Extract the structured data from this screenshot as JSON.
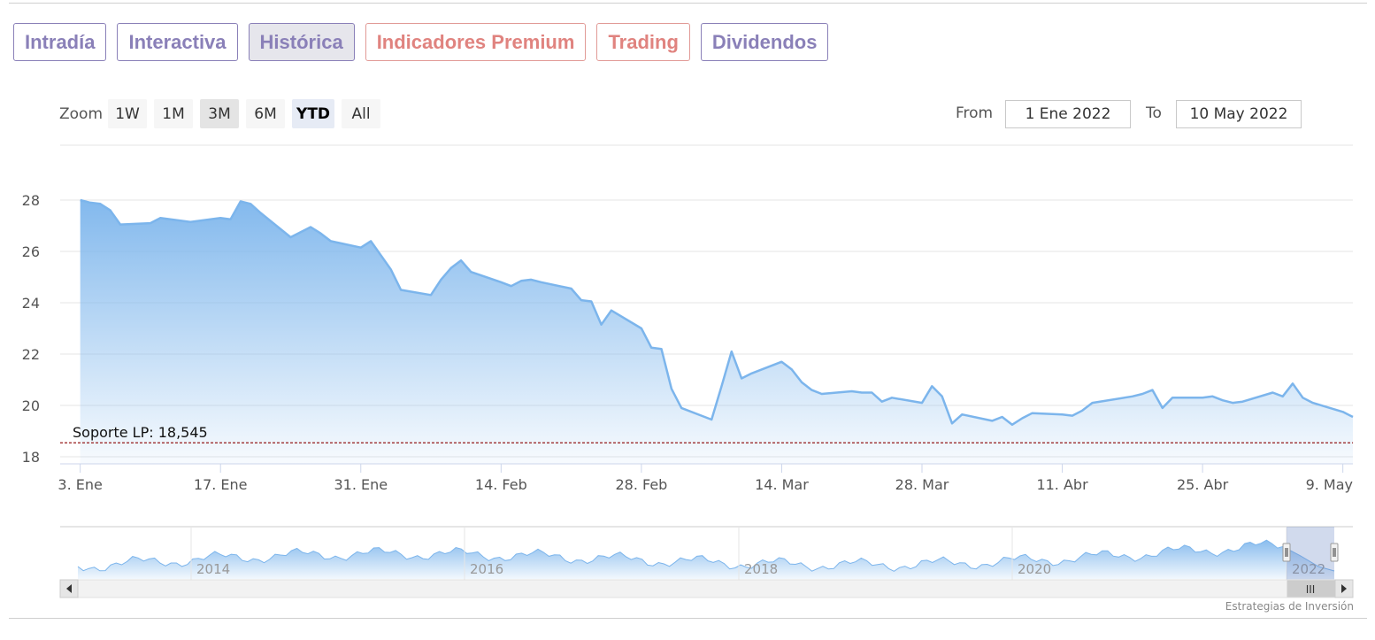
{
  "tabs": [
    {
      "label": "Intradía",
      "active": false,
      "premium": false
    },
    {
      "label": "Interactiva",
      "active": false,
      "premium": false
    },
    {
      "label": "Histórica",
      "active": true,
      "premium": false
    },
    {
      "label": "Indicadores Premium",
      "active": false,
      "premium": true
    },
    {
      "label": "Trading",
      "active": false,
      "premium": true
    },
    {
      "label": "Dividendos",
      "active": false,
      "premium": false
    }
  ],
  "zoom": {
    "label": "Zoom",
    "buttons": [
      "1W",
      "1M",
      "3M",
      "6M",
      "YTD",
      "All"
    ],
    "selected": "YTD"
  },
  "range": {
    "from_label": "From",
    "from_value": "1 Ene 2022",
    "to_label": "To",
    "to_value": "10 May 2022"
  },
  "credit": "Estrategias de Inversión",
  "colors": {
    "line": "#7cb5ec",
    "tab_text": "#8a80b8",
    "premium_text": "#e0837f",
    "support_line": "#8b0000"
  },
  "chart_data": {
    "type": "area",
    "title": "",
    "xlabel": "",
    "ylabel": "",
    "ylim": [
      18,
      28
    ],
    "yticks": [
      18,
      20,
      22,
      24,
      26,
      28
    ],
    "xticks": [
      {
        "label": "3. Ene",
        "date": "2022-01-03"
      },
      {
        "label": "17. Ene",
        "date": "2022-01-17"
      },
      {
        "label": "31. Ene",
        "date": "2022-01-31"
      },
      {
        "label": "14. Feb",
        "date": "2022-02-14"
      },
      {
        "label": "28. Feb",
        "date": "2022-02-28"
      },
      {
        "label": "14. Mar",
        "date": "2022-03-14"
      },
      {
        "label": "28. Mar",
        "date": "2022-03-28"
      },
      {
        "label": "11. Abr",
        "date": "2022-04-11"
      },
      {
        "label": "25. Abr",
        "date": "2022-04-25"
      },
      {
        "label": "9. May",
        "date": "2022-05-09"
      }
    ],
    "grid": true,
    "legend": "none",
    "plot_lines": [
      {
        "label": "Soporte LP: 18,545",
        "value": 18.545
      }
    ],
    "series": [
      {
        "x": [
          "2022-01-03",
          "2022-01-04",
          "2022-01-05",
          "2022-01-06",
          "2022-01-07",
          "2022-01-10",
          "2022-01-11",
          "2022-01-12",
          "2022-01-13",
          "2022-01-14",
          "2022-01-17",
          "2022-01-18",
          "2022-01-19",
          "2022-01-20",
          "2022-01-21",
          "2022-01-24",
          "2022-01-25",
          "2022-01-26",
          "2022-01-27",
          "2022-01-28",
          "2022-01-31",
          "2022-02-01",
          "2022-02-02",
          "2022-02-03",
          "2022-02-04",
          "2022-02-07",
          "2022-02-08",
          "2022-02-09",
          "2022-02-10",
          "2022-02-11",
          "2022-02-14",
          "2022-02-15",
          "2022-02-16",
          "2022-02-17",
          "2022-02-18",
          "2022-02-21",
          "2022-02-22",
          "2022-02-23",
          "2022-02-24",
          "2022-02-25",
          "2022-02-28",
          "2022-03-01",
          "2022-03-02",
          "2022-03-03",
          "2022-03-04",
          "2022-03-07",
          "2022-03-08",
          "2022-03-09",
          "2022-03-10",
          "2022-03-11",
          "2022-03-14",
          "2022-03-15",
          "2022-03-16",
          "2022-03-17",
          "2022-03-18",
          "2022-03-21",
          "2022-03-22",
          "2022-03-23",
          "2022-03-24",
          "2022-03-25",
          "2022-03-28",
          "2022-03-29",
          "2022-03-30",
          "2022-03-31",
          "2022-04-01",
          "2022-04-04",
          "2022-04-05",
          "2022-04-06",
          "2022-04-07",
          "2022-04-08",
          "2022-04-11",
          "2022-04-12",
          "2022-04-13",
          "2022-04-14",
          "2022-04-18",
          "2022-04-19",
          "2022-04-20",
          "2022-04-21",
          "2022-04-22",
          "2022-04-25",
          "2022-04-26",
          "2022-04-27",
          "2022-04-28",
          "2022-04-29",
          "2022-05-02",
          "2022-05-03",
          "2022-05-04",
          "2022-05-05",
          "2022-05-06",
          "2022-05-09",
          "2022-05-10"
        ],
        "values": [
          28.0,
          27.9,
          27.85,
          27.6,
          27.05,
          27.1,
          27.3,
          27.25,
          27.2,
          27.15,
          27.3,
          27.25,
          27.95,
          27.85,
          27.5,
          26.55,
          26.75,
          26.95,
          26.7,
          26.4,
          26.15,
          26.4,
          25.85,
          25.3,
          24.5,
          24.3,
          24.9,
          25.35,
          25.65,
          25.2,
          24.8,
          24.65,
          24.85,
          24.9,
          24.8,
          24.55,
          24.1,
          24.05,
          23.15,
          23.7,
          23.0,
          22.25,
          22.2,
          20.65,
          19.9,
          19.45,
          20.75,
          22.1,
          21.05,
          21.25,
          21.7,
          21.4,
          20.9,
          20.6,
          20.45,
          20.55,
          20.5,
          20.5,
          20.15,
          20.3,
          20.1,
          20.75,
          20.35,
          19.3,
          19.65,
          19.4,
          19.55,
          19.25,
          19.5,
          19.7,
          19.65,
          19.6,
          19.8,
          20.1,
          20.35,
          20.45,
          20.6,
          19.9,
          20.3,
          20.3,
          20.35,
          20.2,
          20.1,
          20.15,
          20.5,
          20.35,
          20.85,
          20.3,
          20.1,
          19.75,
          19.55
        ]
      }
    ]
  },
  "navigator": {
    "labels": [
      "2014",
      "2016",
      "2018",
      "2020",
      "2022"
    ],
    "scrollbar_grip": "III"
  }
}
